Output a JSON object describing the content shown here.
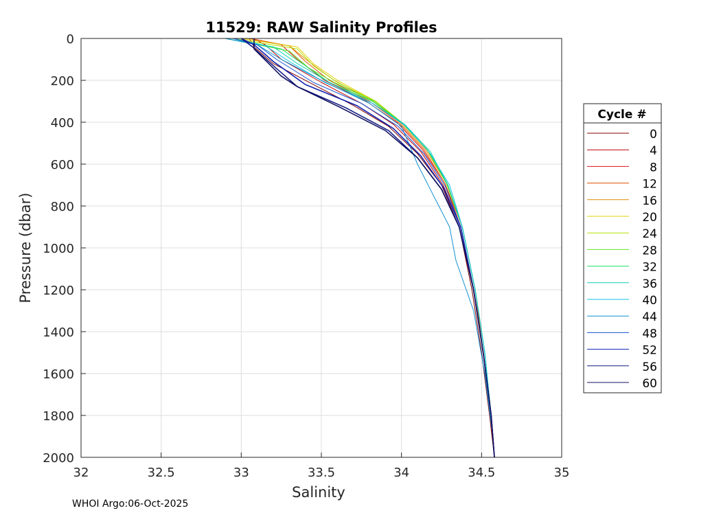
{
  "chart_data": {
    "type": "line",
    "title": "11529: RAW Salinity Profiles",
    "xlabel": "Salinity",
    "ylabel": "Pressure (dbar)",
    "xlim": [
      32,
      35
    ],
    "ylim": [
      0,
      2000
    ],
    "y_reversed": true,
    "xticks": [
      32,
      32.5,
      33,
      33.5,
      34,
      34.5,
      35
    ],
    "xtick_labels": [
      "32",
      "32.5",
      "33",
      "33.5",
      "34",
      "34.5",
      "35"
    ],
    "yticks": [
      0,
      200,
      400,
      600,
      800,
      1000,
      1200,
      1400,
      1600,
      1800,
      2000
    ],
    "ytick_labels": [
      "0",
      "200",
      "400",
      "600",
      "800",
      "1000",
      "1200",
      "1400",
      "1600",
      "1800",
      "2000"
    ],
    "grid": true,
    "legend": {
      "title": "Cycle #",
      "placement": "right"
    },
    "series": [
      {
        "name": "0",
        "color": "#800000",
        "x": [
          33.05,
          33.08,
          33.2,
          33.45,
          33.7,
          33.92,
          34.1,
          34.25,
          34.36,
          34.44,
          34.5,
          34.55,
          34.58
        ],
        "y": [
          0,
          40,
          120,
          220,
          320,
          420,
          550,
          700,
          900,
          1200,
          1500,
          1800,
          2000
        ]
      },
      {
        "name": "4",
        "color": "#c00000",
        "x": [
          33.07,
          33.15,
          33.25,
          33.5,
          33.75,
          33.95,
          34.12,
          34.26,
          34.37,
          34.45,
          34.51,
          34.56,
          34.58
        ],
        "y": [
          0,
          30,
          100,
          210,
          310,
          410,
          540,
          700,
          900,
          1200,
          1500,
          1800,
          2000
        ]
      },
      {
        "name": "8",
        "color": "#e01010",
        "x": [
          33.06,
          33.25,
          33.35,
          33.52,
          33.78,
          33.97,
          34.13,
          34.27,
          34.37,
          34.45,
          34.51,
          34.56,
          34.58
        ],
        "y": [
          0,
          30,
          100,
          200,
          300,
          400,
          530,
          690,
          900,
          1200,
          1500,
          1800,
          2000
        ]
      },
      {
        "name": "12",
        "color": "#e05000",
        "x": [
          33.05,
          33.3,
          33.4,
          33.55,
          33.8,
          33.98,
          34.14,
          34.27,
          34.38,
          34.46,
          34.51,
          34.56,
          34.58
        ],
        "y": [
          0,
          35,
          110,
          200,
          300,
          400,
          530,
          690,
          900,
          1200,
          1500,
          1800,
          2000
        ]
      },
      {
        "name": "16",
        "color": "#e08a00",
        "x": [
          33.0,
          33.3,
          33.42,
          33.58,
          33.82,
          33.99,
          34.15,
          34.28,
          34.38,
          34.46,
          34.52,
          34.56,
          34.58
        ],
        "y": [
          0,
          35,
          110,
          200,
          300,
          400,
          530,
          690,
          900,
          1200,
          1500,
          1800,
          2000
        ]
      },
      {
        "name": "20",
        "color": "#e0d000",
        "x": [
          33.0,
          33.35,
          33.45,
          33.6,
          33.84,
          34.0,
          34.16,
          34.28,
          34.38,
          34.46,
          34.52,
          34.56,
          34.58
        ],
        "y": [
          0,
          40,
          120,
          200,
          300,
          400,
          530,
          690,
          900,
          1200,
          1500,
          1800,
          2000
        ]
      },
      {
        "name": "24",
        "color": "#b0e000",
        "x": [
          32.95,
          33.35,
          33.45,
          33.6,
          33.84,
          34.0,
          34.16,
          34.28,
          34.38,
          34.46,
          34.52,
          34.56,
          34.58
        ],
        "y": [
          0,
          50,
          130,
          210,
          300,
          400,
          530,
          690,
          900,
          1200,
          1500,
          1800,
          2000
        ]
      },
      {
        "name": "28",
        "color": "#60e020",
        "x": [
          32.9,
          33.3,
          33.42,
          33.58,
          33.83,
          34.0,
          34.16,
          34.28,
          34.38,
          34.46,
          34.52,
          34.56,
          34.58
        ],
        "y": [
          0,
          60,
          140,
          210,
          300,
          400,
          530,
          690,
          900,
          1200,
          1500,
          1800,
          2000
        ]
      },
      {
        "name": "32",
        "color": "#20e060",
        "x": [
          32.95,
          33.25,
          33.4,
          33.55,
          33.82,
          34.0,
          34.17,
          34.29,
          34.38,
          34.46,
          34.52,
          34.56,
          34.58
        ],
        "y": [
          0,
          50,
          130,
          210,
          300,
          400,
          540,
          700,
          900,
          1200,
          1500,
          1800,
          2000
        ]
      },
      {
        "name": "36",
        "color": "#10d0b0",
        "x": [
          32.9,
          33.2,
          33.35,
          33.55,
          33.82,
          34.02,
          34.18,
          34.29,
          34.38,
          34.46,
          34.52,
          34.56,
          34.58
        ],
        "y": [
          0,
          40,
          120,
          210,
          310,
          410,
          540,
          700,
          900,
          1200,
          1500,
          1800,
          2000
        ]
      },
      {
        "name": "40",
        "color": "#10c0e0",
        "x": [
          32.95,
          33.15,
          33.3,
          33.52,
          33.82,
          34.03,
          34.18,
          34.3,
          34.38,
          34.46,
          34.52,
          34.56,
          34.58
        ],
        "y": [
          0,
          35,
          110,
          210,
          310,
          420,
          550,
          700,
          900,
          1200,
          1500,
          1800,
          2000
        ]
      },
      {
        "name": "44",
        "color": "#1090d0",
        "x": [
          32.9,
          33.1,
          33.25,
          33.5,
          33.8,
          34.0,
          34.1,
          34.2,
          34.3,
          34.34,
          34.45,
          34.52,
          34.57,
          34.58
        ],
        "y": [
          0,
          30,
          100,
          200,
          310,
          420,
          600,
          750,
          900,
          1060,
          1300,
          1600,
          1900,
          2000
        ]
      },
      {
        "name": "48",
        "color": "#1050d0",
        "x": [
          32.95,
          33.1,
          33.22,
          33.45,
          33.75,
          33.98,
          34.14,
          34.27,
          34.37,
          34.45,
          34.51,
          34.56,
          34.58
        ],
        "y": [
          0,
          30,
          100,
          210,
          310,
          420,
          550,
          700,
          900,
          1200,
          1500,
          1800,
          2000
        ]
      },
      {
        "name": "52",
        "color": "#1020b0",
        "x": [
          33.0,
          33.08,
          33.2,
          33.4,
          33.72,
          33.95,
          34.12,
          34.26,
          34.37,
          34.45,
          34.51,
          34.56,
          34.58
        ],
        "y": [
          0,
          30,
          110,
          220,
          320,
          430,
          560,
          710,
          900,
          1200,
          1500,
          1800,
          2000
        ]
      },
      {
        "name": "56",
        "color": "#101880",
        "x": [
          33.0,
          33.07,
          33.2,
          33.35,
          33.65,
          33.92,
          34.1,
          34.25,
          34.36,
          34.45,
          34.51,
          34.56,
          34.58
        ],
        "y": [
          0,
          40,
          130,
          230,
          330,
          440,
          570,
          720,
          900,
          1200,
          1500,
          1800,
          2000
        ]
      },
      {
        "name": "60",
        "color": "#101060",
        "x": [
          33.08,
          33.08,
          33.25,
          33.35,
          33.62,
          33.9,
          34.1,
          34.25,
          34.36,
          34.45,
          34.51,
          34.56,
          34.58
        ],
        "y": [
          0,
          50,
          180,
          230,
          330,
          440,
          570,
          720,
          900,
          1200,
          1500,
          1800,
          2000
        ]
      }
    ]
  },
  "footer": "WHOI Argo:06-Oct-2025"
}
